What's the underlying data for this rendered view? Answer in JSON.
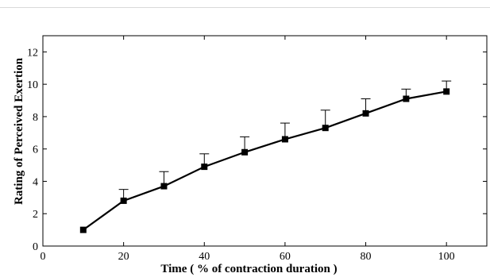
{
  "chart_data": {
    "type": "line",
    "title": "",
    "xlabel": "Time ( % of contraction duration )",
    "ylabel": "Rating of Perceived Exertion",
    "xlim": [
      0,
      110
    ],
    "ylim": [
      0,
      13
    ],
    "x_ticks": [
      0,
      20,
      40,
      60,
      80,
      100
    ],
    "y_ticks": [
      0,
      2,
      4,
      6,
      8,
      10,
      12
    ],
    "grid": false,
    "series": [
      {
        "marker": "square",
        "color": "#000000",
        "x": [
          10,
          20,
          30,
          40,
          50,
          60,
          70,
          80,
          90,
          100
        ],
        "y": [
          1.0,
          2.8,
          3.7,
          4.9,
          5.8,
          6.6,
          7.3,
          8.2,
          9.1,
          9.55
        ],
        "error_upper": [
          null,
          3.5,
          4.6,
          5.7,
          6.75,
          7.6,
          8.4,
          9.1,
          9.7,
          10.2
        ]
      }
    ]
  }
}
